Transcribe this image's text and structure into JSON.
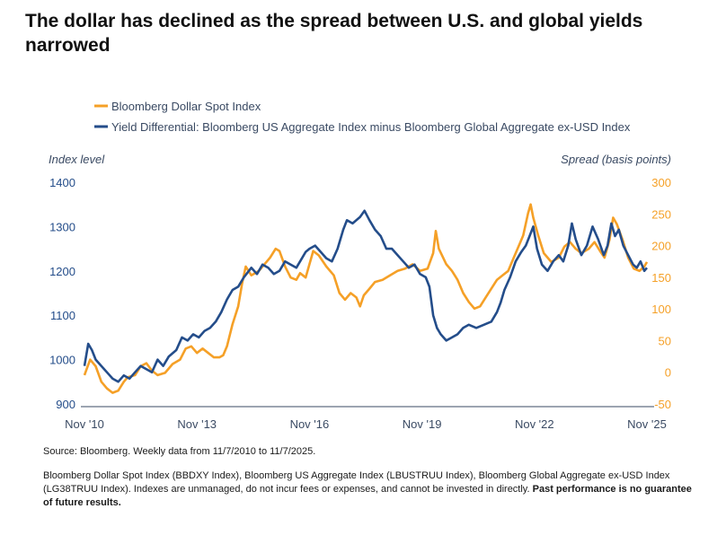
{
  "title": "The dollar has declined as the spread between U.S. and global yields narrowed",
  "chart_data": {
    "type": "line",
    "legend_position": "top-left",
    "grid": false,
    "left_axis": {
      "label": "Index level",
      "range": [
        900,
        1400
      ],
      "ticks": [
        900,
        1000,
        1100,
        1200,
        1300,
        1400
      ]
    },
    "right_axis": {
      "label": "Spread (basis points)",
      "range": [
        -50,
        300
      ],
      "ticks": [
        -50,
        0,
        50,
        100,
        150,
        200,
        250,
        300
      ]
    },
    "x_range": [
      2010.85,
      2025.85
    ],
    "x_ticks": [
      {
        "label": "Nov '10",
        "x": 2010.85
      },
      {
        "label": "Nov '13",
        "x": 2013.85
      },
      {
        "label": "Nov '16",
        "x": 2016.85
      },
      {
        "label": "Nov '19",
        "x": 2019.85
      },
      {
        "label": "Nov '22",
        "x": 2022.85
      },
      {
        "label": "Nov '25",
        "x": 2025.85
      }
    ],
    "series": [
      {
        "name": "Bloomberg Dollar Spot Index",
        "axis": "left",
        "color": "#f5a027",
        "points": [
          [
            2010.85,
            965
          ],
          [
            2011.0,
            1000
          ],
          [
            2011.15,
            985
          ],
          [
            2011.3,
            950
          ],
          [
            2011.45,
            935
          ],
          [
            2011.6,
            925
          ],
          [
            2011.75,
            930
          ],
          [
            2011.9,
            950
          ],
          [
            2012.0,
            960
          ],
          [
            2012.2,
            965
          ],
          [
            2012.35,
            985
          ],
          [
            2012.5,
            992
          ],
          [
            2012.65,
            975
          ],
          [
            2012.8,
            965
          ],
          [
            2013.0,
            970
          ],
          [
            2013.2,
            990
          ],
          [
            2013.4,
            1000
          ],
          [
            2013.55,
            1025
          ],
          [
            2013.7,
            1030
          ],
          [
            2013.85,
            1015
          ],
          [
            2014.0,
            1025
          ],
          [
            2014.15,
            1015
          ],
          [
            2014.3,
            1005
          ],
          [
            2014.45,
            1005
          ],
          [
            2014.55,
            1010
          ],
          [
            2014.65,
            1030
          ],
          [
            2014.8,
            1080
          ],
          [
            2014.95,
            1120
          ],
          [
            2015.05,
            1170
          ],
          [
            2015.15,
            1210
          ],
          [
            2015.3,
            1190
          ],
          [
            2015.5,
            1200
          ],
          [
            2015.65,
            1215
          ],
          [
            2015.8,
            1230
          ],
          [
            2015.95,
            1250
          ],
          [
            2016.05,
            1245
          ],
          [
            2016.2,
            1210
          ],
          [
            2016.35,
            1185
          ],
          [
            2016.5,
            1180
          ],
          [
            2016.6,
            1195
          ],
          [
            2016.75,
            1185
          ],
          [
            2016.85,
            1215
          ],
          [
            2016.95,
            1245
          ],
          [
            2017.1,
            1235
          ],
          [
            2017.3,
            1210
          ],
          [
            2017.5,
            1190
          ],
          [
            2017.65,
            1150
          ],
          [
            2017.8,
            1135
          ],
          [
            2017.95,
            1150
          ],
          [
            2018.1,
            1140
          ],
          [
            2018.2,
            1120
          ],
          [
            2018.3,
            1145
          ],
          [
            2018.45,
            1160
          ],
          [
            2018.6,
            1175
          ],
          [
            2018.8,
            1180
          ],
          [
            2019.0,
            1190
          ],
          [
            2019.2,
            1200
          ],
          [
            2019.4,
            1205
          ],
          [
            2019.6,
            1215
          ],
          [
            2019.8,
            1200
          ],
          [
            2020.0,
            1205
          ],
          [
            2020.15,
            1240
          ],
          [
            2020.22,
            1290
          ],
          [
            2020.3,
            1250
          ],
          [
            2020.5,
            1215
          ],
          [
            2020.65,
            1200
          ],
          [
            2020.8,
            1180
          ],
          [
            2020.95,
            1150
          ],
          [
            2021.1,
            1130
          ],
          [
            2021.25,
            1115
          ],
          [
            2021.4,
            1120
          ],
          [
            2021.55,
            1140
          ],
          [
            2021.7,
            1160
          ],
          [
            2021.85,
            1180
          ],
          [
            2022.0,
            1190
          ],
          [
            2022.15,
            1200
          ],
          [
            2022.3,
            1230
          ],
          [
            2022.45,
            1260
          ],
          [
            2022.55,
            1280
          ],
          [
            2022.68,
            1330
          ],
          [
            2022.75,
            1350
          ],
          [
            2022.82,
            1320
          ],
          [
            2022.95,
            1280
          ],
          [
            2023.1,
            1240
          ],
          [
            2023.3,
            1220
          ],
          [
            2023.5,
            1230
          ],
          [
            2023.65,
            1255
          ],
          [
            2023.8,
            1265
          ],
          [
            2023.95,
            1250
          ],
          [
            2024.1,
            1240
          ],
          [
            2024.3,
            1250
          ],
          [
            2024.45,
            1265
          ],
          [
            2024.6,
            1245
          ],
          [
            2024.72,
            1230
          ],
          [
            2024.85,
            1270
          ],
          [
            2024.95,
            1320
          ],
          [
            2025.05,
            1305
          ],
          [
            2025.2,
            1270
          ],
          [
            2025.35,
            1230
          ],
          [
            2025.5,
            1205
          ],
          [
            2025.65,
            1200
          ],
          [
            2025.78,
            1210
          ],
          [
            2025.85,
            1220
          ]
        ]
      },
      {
        "name": "Yield Differential: Bloomberg US Aggregate Index minus Bloomberg Global Aggregate ex-USD Index",
        "axis": "right",
        "color": "#244d8a",
        "points": [
          [
            2010.85,
            10
          ],
          [
            2010.95,
            45
          ],
          [
            2011.05,
            35
          ],
          [
            2011.15,
            20
          ],
          [
            2011.3,
            10
          ],
          [
            2011.45,
            0
          ],
          [
            2011.6,
            -10
          ],
          [
            2011.75,
            -15
          ],
          [
            2011.9,
            -5
          ],
          [
            2012.05,
            -10
          ],
          [
            2012.2,
            0
          ],
          [
            2012.35,
            10
          ],
          [
            2012.5,
            5
          ],
          [
            2012.65,
            0
          ],
          [
            2012.8,
            20
          ],
          [
            2012.95,
            10
          ],
          [
            2013.1,
            25
          ],
          [
            2013.3,
            35
          ],
          [
            2013.45,
            55
          ],
          [
            2013.6,
            50
          ],
          [
            2013.75,
            60
          ],
          [
            2013.9,
            55
          ],
          [
            2014.05,
            65
          ],
          [
            2014.2,
            70
          ],
          [
            2014.35,
            80
          ],
          [
            2014.5,
            95
          ],
          [
            2014.65,
            115
          ],
          [
            2014.8,
            130
          ],
          [
            2014.95,
            135
          ],
          [
            2015.1,
            150
          ],
          [
            2015.3,
            165
          ],
          [
            2015.45,
            155
          ],
          [
            2015.6,
            170
          ],
          [
            2015.75,
            165
          ],
          [
            2015.9,
            155
          ],
          [
            2016.05,
            160
          ],
          [
            2016.2,
            175
          ],
          [
            2016.35,
            170
          ],
          [
            2016.5,
            165
          ],
          [
            2016.6,
            175
          ],
          [
            2016.75,
            190
          ],
          [
            2016.85,
            195
          ],
          [
            2017.0,
            200
          ],
          [
            2017.15,
            190
          ],
          [
            2017.3,
            180
          ],
          [
            2017.45,
            175
          ],
          [
            2017.6,
            195
          ],
          [
            2017.75,
            225
          ],
          [
            2017.85,
            240
          ],
          [
            2018.0,
            235
          ],
          [
            2018.2,
            245
          ],
          [
            2018.32,
            255
          ],
          [
            2018.45,
            240
          ],
          [
            2018.6,
            225
          ],
          [
            2018.75,
            215
          ],
          [
            2018.9,
            195
          ],
          [
            2019.05,
            195
          ],
          [
            2019.2,
            185
          ],
          [
            2019.35,
            175
          ],
          [
            2019.5,
            165
          ],
          [
            2019.65,
            170
          ],
          [
            2019.8,
            155
          ],
          [
            2019.95,
            150
          ],
          [
            2020.05,
            135
          ],
          [
            2020.15,
            90
          ],
          [
            2020.25,
            70
          ],
          [
            2020.35,
            60
          ],
          [
            2020.5,
            50
          ],
          [
            2020.65,
            55
          ],
          [
            2020.8,
            60
          ],
          [
            2020.95,
            70
          ],
          [
            2021.1,
            75
          ],
          [
            2021.3,
            70
          ],
          [
            2021.5,
            75
          ],
          [
            2021.7,
            80
          ],
          [
            2021.85,
            95
          ],
          [
            2021.95,
            110
          ],
          [
            2022.05,
            130
          ],
          [
            2022.2,
            150
          ],
          [
            2022.35,
            175
          ],
          [
            2022.5,
            190
          ],
          [
            2022.62,
            200
          ],
          [
            2022.72,
            215
          ],
          [
            2022.82,
            230
          ],
          [
            2022.92,
            195
          ],
          [
            2023.05,
            170
          ],
          [
            2023.2,
            160
          ],
          [
            2023.35,
            175
          ],
          [
            2023.5,
            185
          ],
          [
            2023.62,
            175
          ],
          [
            2023.75,
            200
          ],
          [
            2023.85,
            235
          ],
          [
            2023.95,
            210
          ],
          [
            2024.1,
            185
          ],
          [
            2024.25,
            200
          ],
          [
            2024.4,
            230
          ],
          [
            2024.55,
            210
          ],
          [
            2024.7,
            185
          ],
          [
            2024.8,
            200
          ],
          [
            2024.9,
            235
          ],
          [
            2025.0,
            215
          ],
          [
            2025.1,
            225
          ],
          [
            2025.22,
            200
          ],
          [
            2025.35,
            185
          ],
          [
            2025.48,
            170
          ],
          [
            2025.58,
            165
          ],
          [
            2025.68,
            175
          ],
          [
            2025.78,
            160
          ],
          [
            2025.85,
            165
          ]
        ]
      }
    ]
  },
  "source": "Source: Bloomberg. Weekly data from 11/7/2010 to 11/7/2025.",
  "disclaimer": "Bloomberg Dollar Spot Index (BBDXY Index), Bloomberg US Aggregate Index (LBUSTRUU Index), Bloomberg Global Aggregate ex-USD Index (LG38TRUU Index). Indexes are unmanaged, do not incur fees or expenses, and cannot be invested in directly.",
  "disclaimer_bold": "Past performance is no guarantee of future results."
}
